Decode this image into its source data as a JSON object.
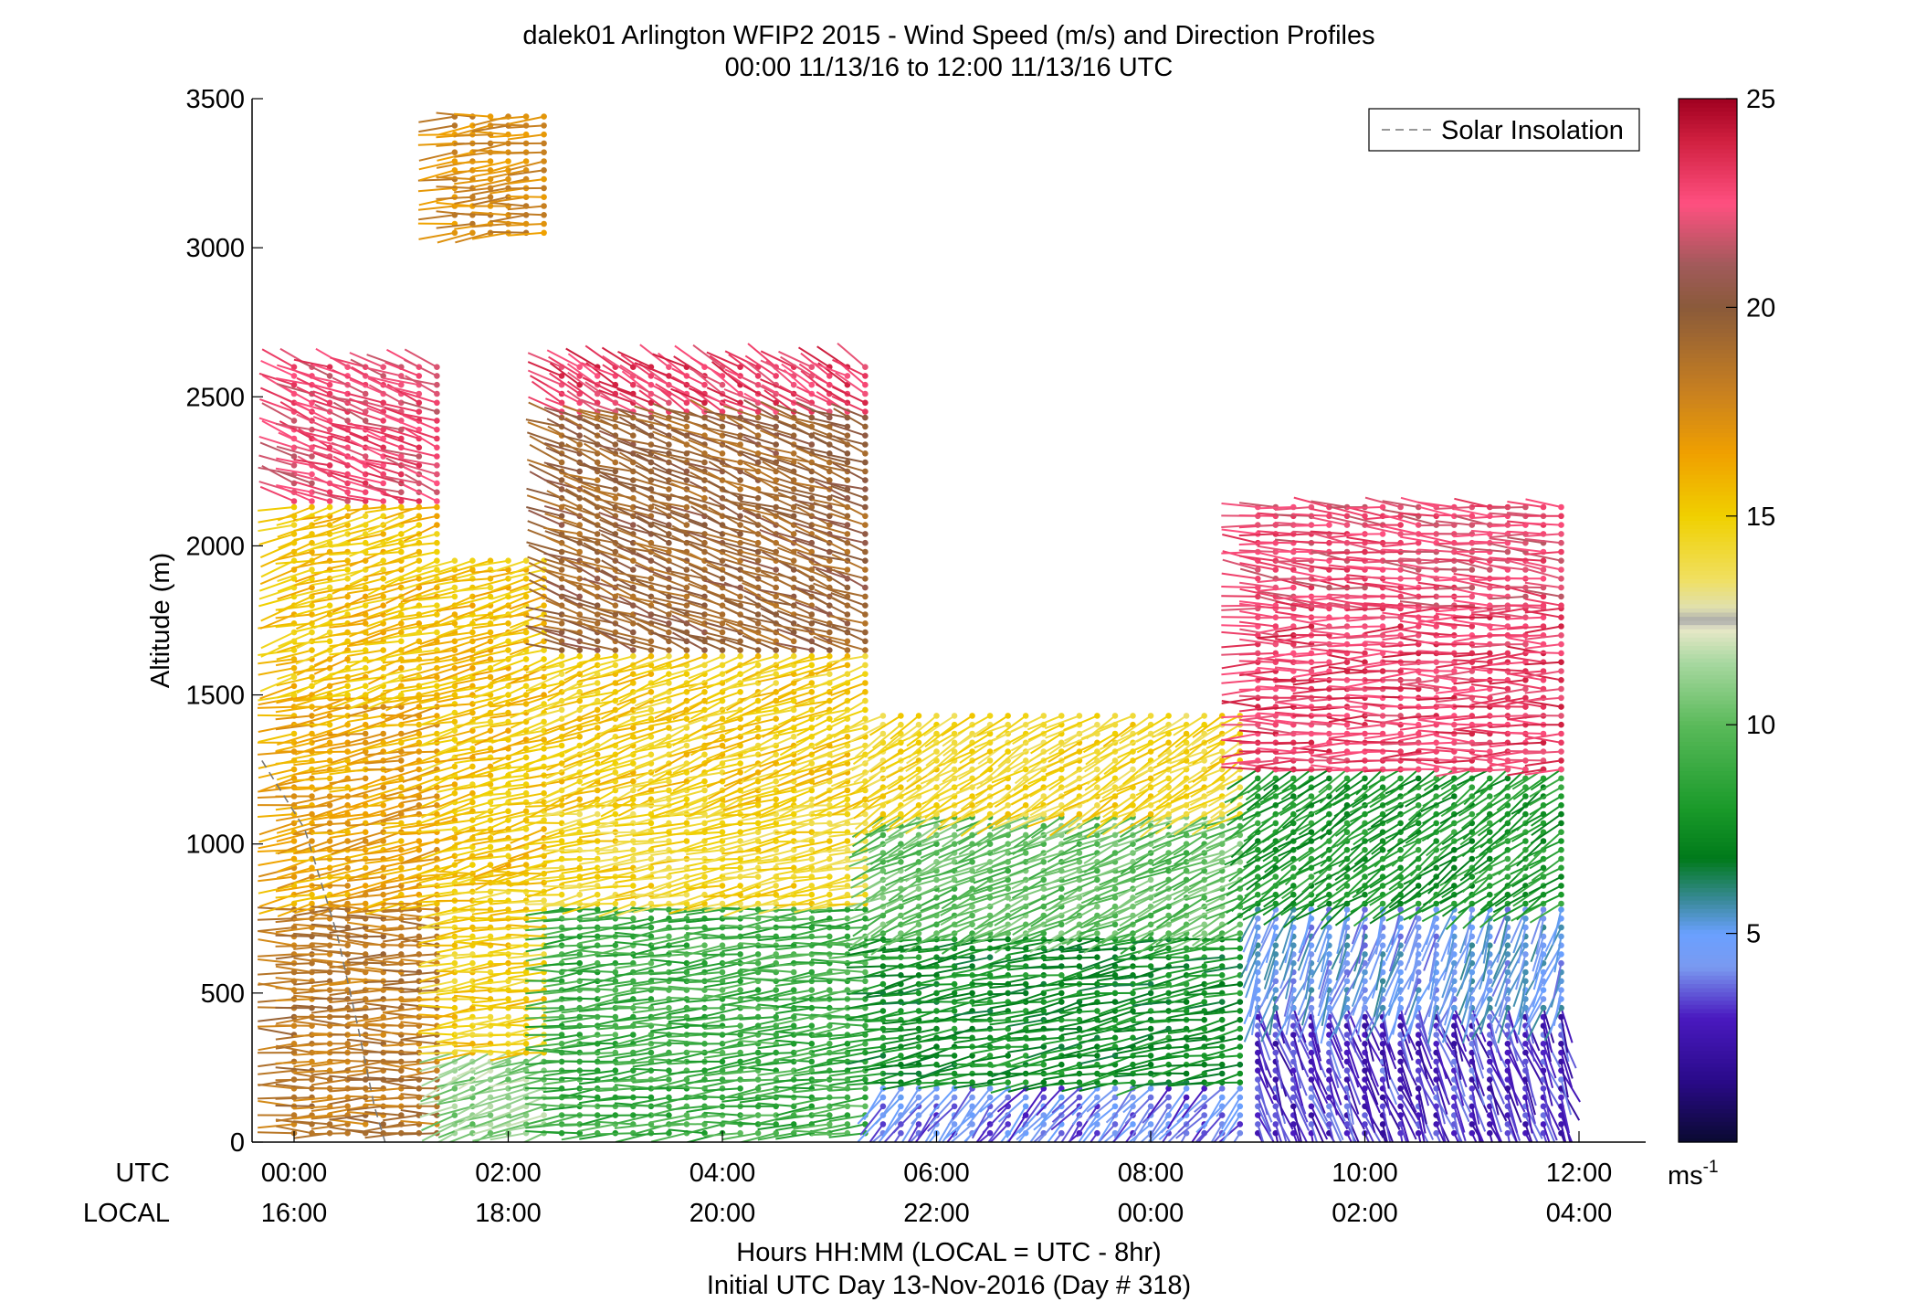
{
  "chart_data": {
    "type": "wind-barb-profile",
    "title": "dalek01 Arlington WFIP2 2015 - Wind Speed (m/s) and Direction Profiles",
    "subtitle": "00:00 11/13/16 to 12:00 11/13/16  UTC",
    "xlabel": "Hours HH:MM  (LOCAL = UTC - 8hr)",
    "xlabel2": "Initial UTC Day 13-Nov-2016 (Day # 318)",
    "ylabel": "Altitude (m)",
    "xlim": [
      -0.25,
      12.5
    ],
    "ylim": [
      0,
      3500
    ],
    "x_row_utc_label": "UTC",
    "x_row_local_label": "LOCAL",
    "x_ticks_utc": [
      "00:00",
      "02:00",
      "04:00",
      "06:00",
      "08:00",
      "10:00",
      "12:00"
    ],
    "x_ticks_local": [
      "16:00",
      "18:00",
      "20:00",
      "22:00",
      "00:00",
      "02:00",
      "04:00"
    ],
    "x_tick_values": [
      0,
      2,
      4,
      6,
      8,
      10,
      12
    ],
    "y_ticks": [
      0,
      500,
      1000,
      1500,
      2000,
      2500,
      3000,
      3500
    ],
    "legend": {
      "label": "Solar Insolation",
      "position": "top-right"
    },
    "solar_insolation": {
      "x": [
        -0.3,
        0.1,
        0.4,
        0.6,
        0.75,
        0.85
      ],
      "y": [
        1280,
        1050,
        700,
        380,
        120,
        0
      ]
    },
    "colorbar": {
      "ticks": [
        5,
        10,
        15,
        20,
        25
      ],
      "range": [
        0,
        25
      ],
      "unit_label": "ms",
      "unit_exp": "-1",
      "colors": [
        [
          0,
          "#0a0a30"
        ],
        [
          1.5,
          "#2a0a8a"
        ],
        [
          3,
          "#4a1ac0"
        ],
        [
          4.2,
          "#7a9af0"
        ],
        [
          5,
          "#6aa0ff"
        ],
        [
          5.8,
          "#3a8a9a"
        ],
        [
          6.8,
          "#007a1a"
        ],
        [
          8,
          "#1a9a2a"
        ],
        [
          10,
          "#5aba5a"
        ],
        [
          11.5,
          "#a8d8a0"
        ],
        [
          12.3,
          "#e8e8c8"
        ],
        [
          12.5,
          "#aaaaaa"
        ],
        [
          12.8,
          "#e0e0b0"
        ],
        [
          13.5,
          "#f0e060"
        ],
        [
          15,
          "#f0d000"
        ],
        [
          16.5,
          "#f0a000"
        ],
        [
          18,
          "#c88020"
        ],
        [
          20,
          "#8a5a3a"
        ],
        [
          21,
          "#a05a5a"
        ],
        [
          22.5,
          "#ff5080"
        ],
        [
          24,
          "#d02040"
        ],
        [
          25,
          "#a00020"
        ]
      ]
    },
    "profiles_description_note": "",
    "profiles": [
      {
        "t_start": 0.0,
        "t_end": 1.5,
        "layers": [
          {
            "z0": 30,
            "z1": 800,
            "speed": 18.5,
            "dir": 270
          },
          {
            "z0": 800,
            "z1": 1500,
            "speed": 16.5,
            "dir": 260
          },
          {
            "z0": 1500,
            "z1": 2150,
            "speed": 15.5,
            "dir": 255
          },
          {
            "z0": 2150,
            "z1": 2600,
            "speed": 22.5,
            "dir": 290
          }
        ]
      },
      {
        "t_start": 1.5,
        "t_end": 2.5,
        "layers": [
          {
            "z0": 30,
            "z1": 300,
            "speed": 11,
            "dir": 250
          },
          {
            "z0": 300,
            "z1": 900,
            "speed": 15,
            "dir": 265
          },
          {
            "z0": 900,
            "z1": 1950,
            "speed": 15.5,
            "dir": 255
          },
          {
            "z0": 3050,
            "z1": 3450,
            "speed": 17.5,
            "dir": 265
          }
        ]
      },
      {
        "t_start": 2.5,
        "t_end": 5.5,
        "layers": [
          {
            "z0": 30,
            "z1": 800,
            "speed": 9,
            "dir": 265
          },
          {
            "z0": 800,
            "z1": 1150,
            "speed": 14.5,
            "dir": 260
          },
          {
            "z0": 1150,
            "z1": 1650,
            "speed": 15,
            "dir": 250
          },
          {
            "z0": 1650,
            "z1": 2450,
            "speed": 19.5,
            "dir": 290
          },
          {
            "z0": 2450,
            "z1": 2600,
            "speed": 23,
            "dir": 300
          }
        ]
      },
      {
        "t_start": 5.5,
        "t_end": 9.0,
        "layers": [
          {
            "z0": 30,
            "z1": 200,
            "speed": 4,
            "dir": 220
          },
          {
            "z0": 200,
            "z1": 700,
            "speed": 7.5,
            "dir": 260
          },
          {
            "z0": 700,
            "z1": 1100,
            "speed": 10,
            "dir": 245
          },
          {
            "z0": 1100,
            "z1": 1450,
            "speed": 14.5,
            "dir": 240
          }
        ]
      },
      {
        "t_start": 9.0,
        "t_end": 12.0,
        "layers": [
          {
            "z0": 30,
            "z1": 450,
            "speed": 3,
            "dir": 160
          },
          {
            "z0": 450,
            "z1": 800,
            "speed": 4.8,
            "dir": 200
          },
          {
            "z0": 800,
            "z1": 1250,
            "speed": 8,
            "dir": 235
          },
          {
            "z0": 1250,
            "z1": 1800,
            "speed": 23,
            "dir": 270
          },
          {
            "z0": 1800,
            "z1": 2150,
            "speed": 22.5,
            "dir": 275
          }
        ]
      }
    ]
  }
}
